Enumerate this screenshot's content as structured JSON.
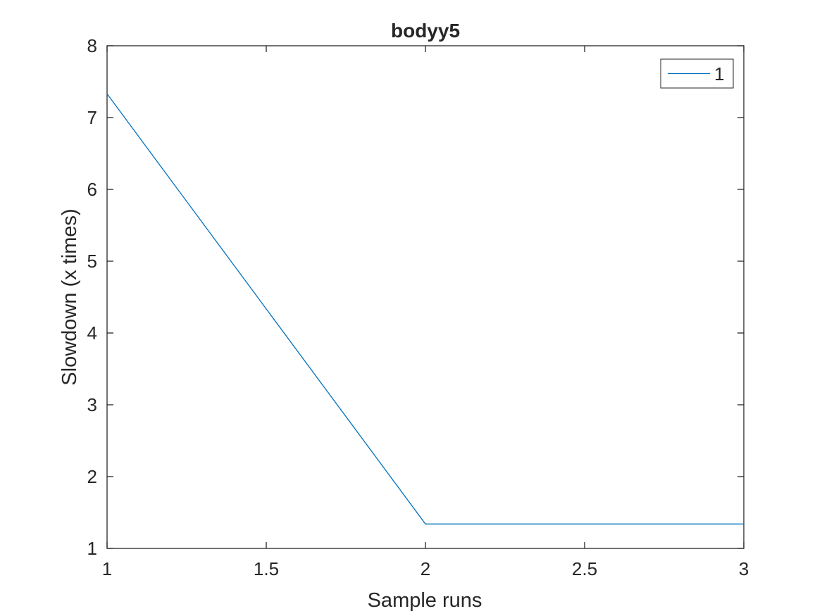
{
  "chart_data": {
    "type": "line",
    "title": "bodyy5",
    "xlabel": "Sample runs",
    "ylabel": "Slowdown (x times)",
    "xlim": [
      1,
      3
    ],
    "ylim": [
      1,
      8
    ],
    "xticks": [
      1,
      1.5,
      2,
      2.5,
      3
    ],
    "xtick_labels": [
      "1",
      "1.5",
      "2",
      "2.5",
      "3"
    ],
    "yticks": [
      1,
      2,
      3,
      4,
      5,
      6,
      7,
      8
    ],
    "ytick_labels": [
      "1",
      "2",
      "3",
      "4",
      "5",
      "6",
      "7",
      "8"
    ],
    "grid": false,
    "legend_position": "top-right",
    "series": [
      {
        "name": "1",
        "color": "#0072bd",
        "x": [
          1,
          2,
          3
        ],
        "y": [
          7.33,
          1.34,
          1.34
        ]
      }
    ]
  }
}
